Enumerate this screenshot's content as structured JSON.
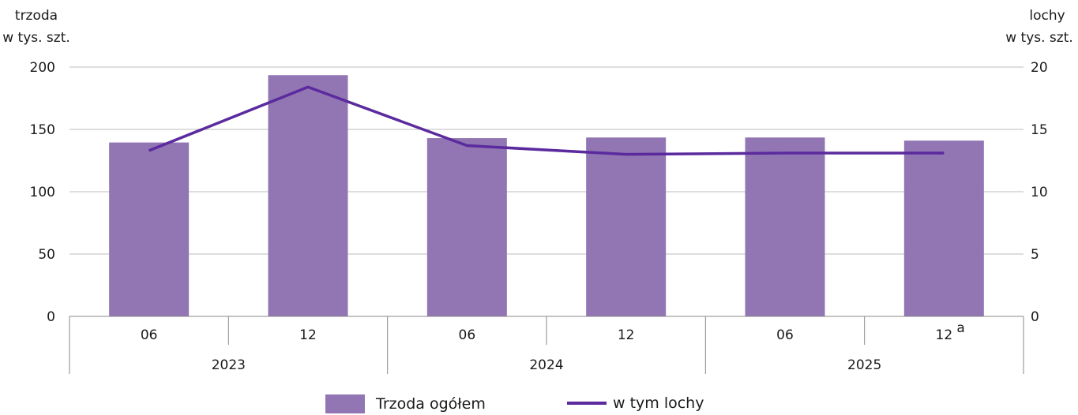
{
  "colors": {
    "bar": "#9176b3",
    "line": "#5b2a9e",
    "grid": "#bdbdbd",
    "axis": "#8a8a8a"
  },
  "chart_data": {
    "type": "bar",
    "categories": [
      "06",
      "12",
      "06",
      "12",
      "06",
      "12"
    ],
    "category_superscripts": [
      "",
      "",
      "",
      "",
      "",
      "a"
    ],
    "year_groups": [
      {
        "label": "2023",
        "span": 2
      },
      {
        "label": "2024",
        "span": 2
      },
      {
        "label": "2025",
        "span": 2
      }
    ],
    "series": [
      {
        "name": "Trzoda ogółem",
        "kind": "bar",
        "axis": "left",
        "values": [
          139.5,
          193.5,
          143,
          143.5,
          143.5,
          141
        ]
      },
      {
        "name": "w tym lochy",
        "kind": "line",
        "axis": "right",
        "values": [
          13.3,
          18.4,
          13.7,
          13.0,
          13.1,
          13.1
        ]
      }
    ],
    "left_axis": {
      "label_line1": "trzoda",
      "label_line2": "w tys. szt.",
      "ylim": [
        0,
        200
      ],
      "ticks": [
        0,
        50,
        100,
        150,
        200
      ]
    },
    "right_axis": {
      "label_line1": "lochy",
      "label_line2": "w tys. szt.",
      "ylim": [
        0,
        20
      ],
      "ticks": [
        0,
        5,
        10,
        15,
        20
      ]
    },
    "grid": true,
    "legend_position": "bottom-center"
  },
  "legend": {
    "bar_label": "Trzoda ogółem",
    "line_label": "w tym lochy"
  }
}
